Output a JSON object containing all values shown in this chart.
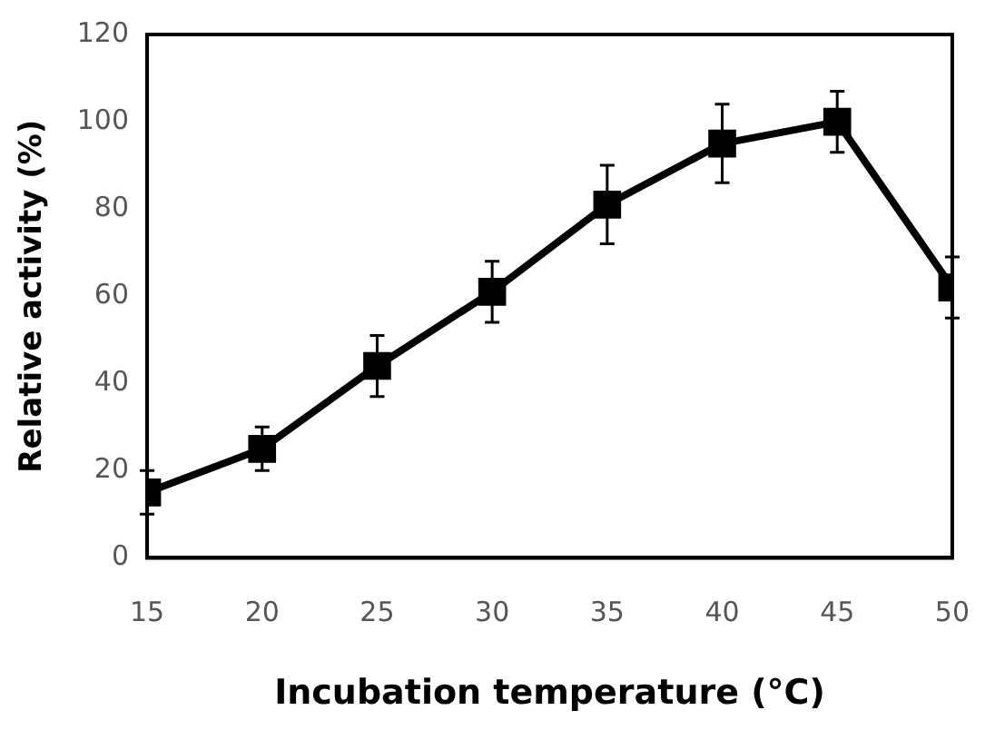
{
  "chart_data": {
    "type": "line",
    "xlabel": "Incubation temperature (°C)",
    "ylabel": "Relative activity (%)",
    "x": [
      15,
      20,
      25,
      30,
      35,
      40,
      45,
      50
    ],
    "series": [
      {
        "color": "#000000",
        "values": [
          15,
          25,
          44,
          61,
          81,
          95,
          100,
          62
        ],
        "errors": [
          5,
          5,
          7,
          7,
          9,
          9,
          7,
          7
        ]
      }
    ],
    "xlim": [
      15,
      50
    ],
    "xticks": [
      15,
      20,
      25,
      30,
      35,
      40,
      45,
      50
    ],
    "ylim": [
      0,
      120
    ],
    "yticks": [
      0,
      20,
      40,
      60,
      80,
      100,
      120
    ],
    "grid": false,
    "legend": false,
    "marker": "square",
    "line_style": "solid"
  }
}
